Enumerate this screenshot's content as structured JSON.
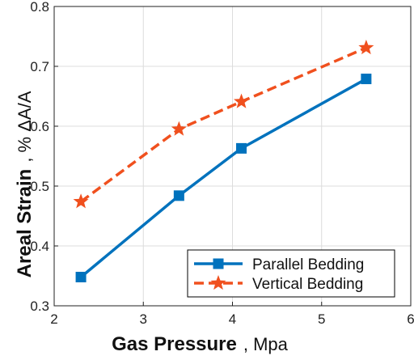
{
  "chart_data": {
    "type": "line",
    "x_label": {
      "title": "Gas Pressure",
      "unit": ", Mpa"
    },
    "y_label": {
      "title": "Areal Strain",
      "unit": ", % ΔA/A"
    },
    "xlim": [
      2,
      6
    ],
    "ylim": [
      0.3,
      0.8
    ],
    "x_ticks": [
      "2",
      "3",
      "4",
      "5",
      "6"
    ],
    "y_ticks": [
      "0.3",
      "0.4",
      "0.5",
      "0.6",
      "0.7",
      "0.8"
    ],
    "grid": true,
    "legend_position": "bottom-right",
    "series": [
      {
        "name": "Parallel Bedding",
        "color": "#0072BD",
        "line_style": "solid",
        "marker": "square",
        "points": [
          {
            "x": 2.3,
            "y": 0.348
          },
          {
            "x": 3.4,
            "y": 0.484
          },
          {
            "x": 4.1,
            "y": 0.563
          },
          {
            "x": 5.5,
            "y": 0.679
          }
        ]
      },
      {
        "name": "Vertical Bedding",
        "color": "#F0501E",
        "line_style": "dashed",
        "marker": "star",
        "points": [
          {
            "x": 2.3,
            "y": 0.474
          },
          {
            "x": 3.4,
            "y": 0.595
          },
          {
            "x": 4.1,
            "y": 0.641
          },
          {
            "x": 5.5,
            "y": 0.731
          }
        ]
      }
    ]
  }
}
